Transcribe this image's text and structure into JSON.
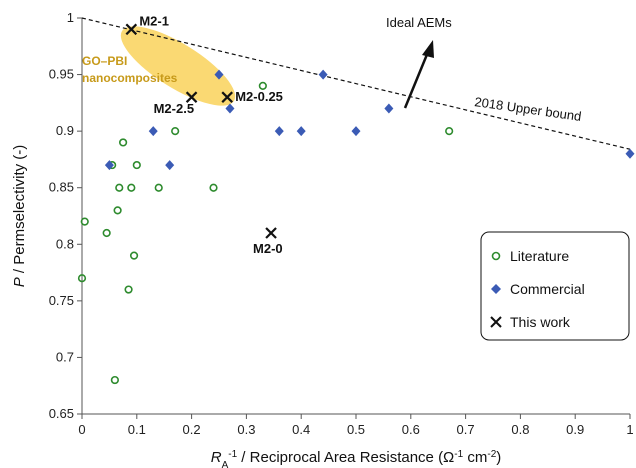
{
  "chart_data": {
    "type": "scatter",
    "xlabel_main": "R",
    "xlabel_sub": "A",
    "xlabel_sup": "-1",
    "xlabel_rest": " / Reciprocal Area Resistance (Ω",
    "xlabel_unit_sup1": "-1",
    "xlabel_unit_mid": " cm",
    "xlabel_unit_sup2": "-2",
    "xlabel_end": ")",
    "ylabel_italic": "P",
    "ylabel_rest": " / Permselectivity (-)",
    "xlim": [
      0,
      1
    ],
    "ylim": [
      0.65,
      1
    ],
    "x_ticks": [
      "0",
      "0.1",
      "0.2",
      "0.3",
      "0.4",
      "0.5",
      "0.6",
      "0.7",
      "0.8",
      "0.9",
      "1"
    ],
    "y_ticks": [
      "0.65",
      "0.7",
      "0.75",
      "0.8",
      "0.85",
      "0.9",
      "0.95",
      "1"
    ],
    "grid": false,
    "legend_position": "bottom-right",
    "series": [
      {
        "name": "Literature",
        "marker": "open-circle",
        "color": "#2e8b2e",
        "points": [
          {
            "x": 0.0,
            "y": 0.77
          },
          {
            "x": 0.005,
            "y": 0.82
          },
          {
            "x": 0.045,
            "y": 0.81
          },
          {
            "x": 0.055,
            "y": 0.87
          },
          {
            "x": 0.06,
            "y": 0.68
          },
          {
            "x": 0.065,
            "y": 0.83
          },
          {
            "x": 0.068,
            "y": 0.85
          },
          {
            "x": 0.075,
            "y": 0.89
          },
          {
            "x": 0.085,
            "y": 0.76
          },
          {
            "x": 0.09,
            "y": 0.85
          },
          {
            "x": 0.095,
            "y": 0.79
          },
          {
            "x": 0.1,
            "y": 0.87
          },
          {
            "x": 0.14,
            "y": 0.85
          },
          {
            "x": 0.17,
            "y": 0.9
          },
          {
            "x": 0.24,
            "y": 0.85
          },
          {
            "x": 0.33,
            "y": 0.94
          },
          {
            "x": 0.67,
            "y": 0.9
          }
        ]
      },
      {
        "name": "Commercial",
        "marker": "diamond",
        "color": "#3b5bb5",
        "points": [
          {
            "x": 0.05,
            "y": 0.87
          },
          {
            "x": 0.13,
            "y": 0.9
          },
          {
            "x": 0.16,
            "y": 0.87
          },
          {
            "x": 0.25,
            "y": 0.95
          },
          {
            "x": 0.27,
            "y": 0.92
          },
          {
            "x": 0.36,
            "y": 0.9
          },
          {
            "x": 0.4,
            "y": 0.9
          },
          {
            "x": 0.44,
            "y": 0.95
          },
          {
            "x": 0.5,
            "y": 0.9
          },
          {
            "x": 0.56,
            "y": 0.92
          },
          {
            "x": 1.0,
            "y": 0.88
          }
        ]
      },
      {
        "name": "This work",
        "marker": "cross",
        "color": "#111111",
        "points": [
          {
            "x": 0.09,
            "y": 0.99,
            "label": "M2-1"
          },
          {
            "x": 0.2,
            "y": 0.93,
            "label": "M2-2.5"
          },
          {
            "x": 0.265,
            "y": 0.93,
            "label": "M2-0.25"
          },
          {
            "x": 0.345,
            "y": 0.81,
            "label": "M2-0"
          }
        ]
      }
    ],
    "upper_bound": {
      "label": "2018 Upper bound",
      "x": [
        0,
        1
      ],
      "y": [
        1.0,
        0.884
      ]
    },
    "annotations": {
      "ideal": "Ideal AEMs",
      "region_line1": "GO–PBI",
      "region_line2": "nanocomposites",
      "region_color": "#f9d25a"
    }
  }
}
